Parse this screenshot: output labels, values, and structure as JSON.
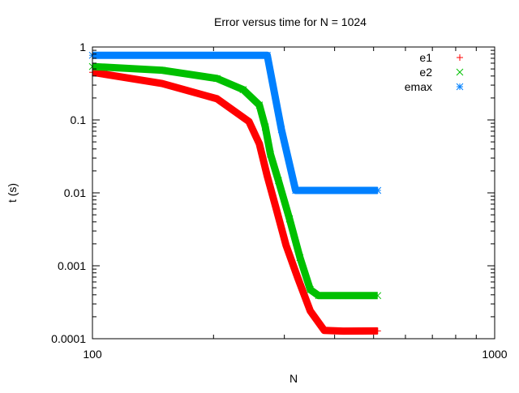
{
  "chart_data": {
    "type": "scatter",
    "title": "Error versus time for N = 1024",
    "xlabel": "N",
    "ylabel": "t (s)",
    "xscale": "log",
    "yscale": "log",
    "xlim": [
      100,
      1000
    ],
    "ylim": [
      0.0001,
      1
    ],
    "xticks": [
      "100",
      "1000"
    ],
    "yticks": [
      "0.0001",
      "0.001",
      "0.01",
      "0.1",
      "1"
    ],
    "grid": false,
    "legend_position": "top-right",
    "series": [
      {
        "name": "e1",
        "marker": "plus",
        "color": "#ff0000",
        "x": [
          100,
          149,
          204,
          245,
          260,
          272,
          286,
          303,
          324,
          348,
          377,
          420,
          512
        ],
        "y": [
          0.45,
          0.316,
          0.195,
          0.095,
          0.047,
          0.017,
          0.0062,
          0.0019,
          0.00068,
          0.00024,
          0.00013,
          0.000127,
          0.000128
        ]
      },
      {
        "name": "e2",
        "marker": "cross",
        "color": "#00c000",
        "x": [
          100,
          149,
          204,
          237,
          260,
          269,
          277,
          290,
          309,
          328,
          348,
          365,
          420,
          512
        ],
        "y": [
          0.54,
          0.48,
          0.37,
          0.26,
          0.16,
          0.08,
          0.034,
          0.0147,
          0.0044,
          0.0013,
          0.00047,
          0.00039,
          0.00039,
          0.00039
        ]
      },
      {
        "name": "emax",
        "marker": "star",
        "color": "#0080ff",
        "x": [
          100,
          200,
          272,
          295,
          320,
          400,
          512
        ],
        "y": [
          0.77,
          0.77,
          0.77,
          0.074,
          0.0108,
          0.0108,
          0.0108
        ]
      }
    ]
  }
}
